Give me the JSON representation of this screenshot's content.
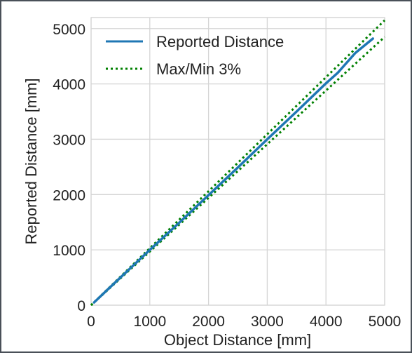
{
  "chart_data": {
    "type": "line",
    "title": "",
    "xlabel": "Object Distance [mm]",
    "ylabel": "Reported Distance [mm]",
    "xlim": [
      0,
      5000
    ],
    "ylim": [
      0,
      5200
    ],
    "x_ticks": [
      0,
      1000,
      2000,
      3000,
      4000,
      5000
    ],
    "y_ticks": [
      0,
      1000,
      2000,
      3000,
      4000,
      5000
    ],
    "x_tick_labels": [
      "0",
      "1000",
      "2000",
      "3000",
      "4000",
      "5000"
    ],
    "y_tick_labels": [
      "0",
      "1000",
      "2000",
      "3000",
      "4000",
      "5000"
    ],
    "grid": true,
    "legend_position": "top-left",
    "series": [
      {
        "name": "Reported Distance",
        "style": "solid",
        "color": "#1f77b4",
        "x": [
          50,
          300,
          600,
          1000,
          1500,
          2000,
          2500,
          3000,
          3500,
          4000,
          4200,
          4500,
          4800
        ],
        "y": [
          50,
          300,
          600,
          1000,
          1490,
          1990,
          2490,
          3000,
          3500,
          4010,
          4200,
          4560,
          4820
        ]
      },
      {
        "name": "Max/Min 3%",
        "style": "dotted",
        "color": "#008000",
        "x": [
          0,
          5000
        ],
        "y": [
          0,
          5150
        ]
      },
      {
        "name": "",
        "style": "dotted",
        "color": "#008000",
        "x": [
          0,
          5000
        ],
        "y": [
          0,
          4850
        ]
      }
    ]
  }
}
